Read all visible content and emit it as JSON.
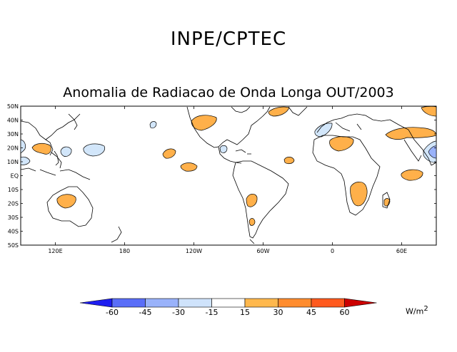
{
  "header": {
    "organization": "INPE/CPTEC",
    "title": "Anomalia de Radiacao de Onda Longa OUT/2003"
  },
  "map": {
    "lat_ticks": [
      "50N",
      "40N",
      "30N",
      "20N",
      "10N",
      "EQ",
      "10S",
      "20S",
      "30S",
      "40S",
      "50S"
    ],
    "lon_ticks": [
      "120E",
      "180",
      "120W",
      "60W",
      "0",
      "60E"
    ],
    "lat_range": [
      -50,
      50
    ],
    "lon_range": [
      90,
      450
    ]
  },
  "colorbar": {
    "labels": [
      "-60",
      "-45",
      "-30",
      "-15",
      "15",
      "30",
      "45",
      "60"
    ],
    "colors": [
      "#1e1ef0",
      "#5a6ef8",
      "#99b2fa",
      "#cfe3fb",
      "#ffffff",
      "#ffb84d",
      "#ff8c2e",
      "#ff5a1e",
      "#cc0000"
    ],
    "units_base": "W/m",
    "units_exp": "2"
  },
  "colors": {
    "positive": "#ffb04a",
    "negative": "#d2e6fa",
    "coast": "#000000"
  }
}
